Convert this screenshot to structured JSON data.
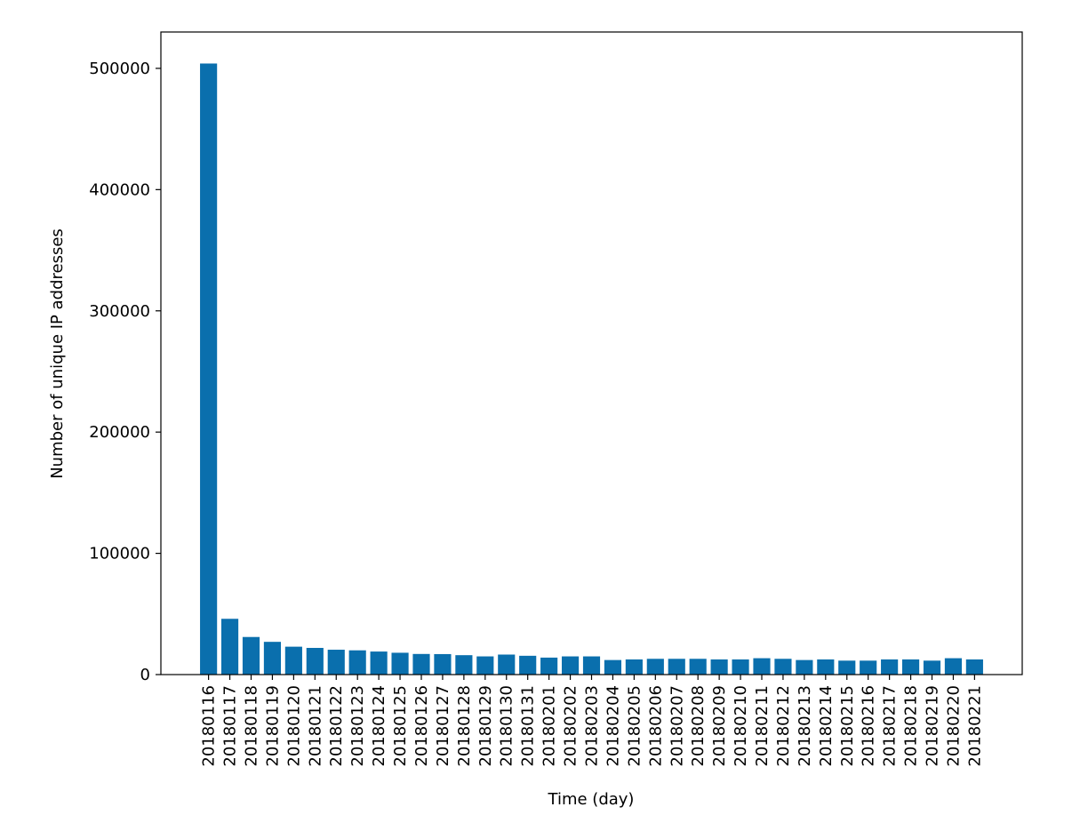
{
  "chart_data": {
    "type": "bar",
    "x_label": "Time (day)",
    "y_label": "Number of unique IP addresses",
    "categories": [
      "20180116",
      "20180117",
      "20180118",
      "20180119",
      "20180120",
      "20180121",
      "20180122",
      "20180123",
      "20180124",
      "20180125",
      "20180126",
      "20180127",
      "20180128",
      "20180129",
      "20180130",
      "20180131",
      "20180201",
      "20180202",
      "20180203",
      "20180204",
      "20180205",
      "20180206",
      "20180207",
      "20180208",
      "20180209",
      "20180210",
      "20180211",
      "20180212",
      "20180213",
      "20180214",
      "20180215",
      "20180216",
      "20180217",
      "20180218",
      "20180219",
      "20180220",
      "20180221"
    ],
    "values": [
      504000,
      46000,
      31000,
      27000,
      23000,
      22000,
      20500,
      20000,
      19000,
      18000,
      17000,
      16900,
      16000,
      15000,
      16500,
      15500,
      14000,
      15000,
      15000,
      12000,
      12500,
      13000,
      13000,
      13000,
      12500,
      12500,
      13500,
      13000,
      12000,
      12500,
      11500,
      11500,
      12500,
      12500,
      11500,
      13500,
      12500
    ],
    "color": "#0a6fad",
    "ylim": [
      0,
      530000
    ],
    "yticks": [
      0,
      100000,
      200000,
      300000,
      400000,
      500000
    ]
  }
}
